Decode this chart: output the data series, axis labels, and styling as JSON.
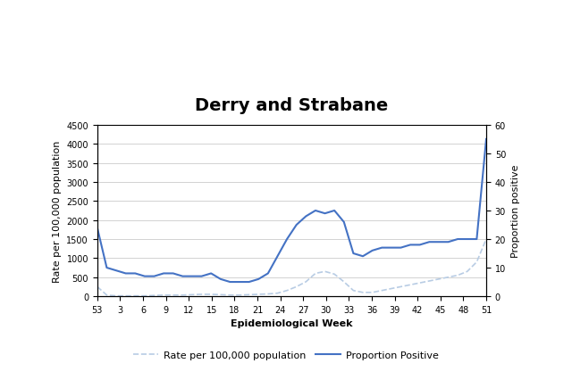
{
  "title": "Derry and Strabane",
  "xlabel": "Epidemiological Week",
  "ylabel_left": "Rate per 100,000 population",
  "ylabel_right": "Proportion positive",
  "xtick_labels": [
    "53",
    "3",
    "6",
    "9",
    "12",
    "15",
    "18",
    "21",
    "24",
    "27",
    "30",
    "33",
    "36",
    "39",
    "42",
    "45",
    "48",
    "51"
  ],
  "ylim_left": [
    0,
    4500
  ],
  "ylim_right": [
    0,
    60
  ],
  "yticks_left": [
    0,
    500,
    1000,
    1500,
    2000,
    2500,
    3000,
    3500,
    4000,
    4500
  ],
  "yticks_right": [
    0,
    10,
    20,
    30,
    40,
    50,
    60
  ],
  "proportion_positive": [
    24,
    10,
    9,
    8,
    8,
    7,
    7,
    8,
    8,
    7,
    7,
    7,
    8,
    6,
    5,
    5,
    5,
    6,
    8,
    14,
    20,
    25,
    28,
    30,
    29,
    30,
    26,
    15,
    14,
    16,
    17,
    17,
    17,
    18,
    18,
    19,
    19,
    19,
    20,
    20,
    20,
    55
  ],
  "rate_per_100k": [
    250,
    30,
    10,
    10,
    10,
    10,
    20,
    30,
    30,
    30,
    40,
    50,
    50,
    40,
    30,
    30,
    40,
    50,
    60,
    80,
    150,
    250,
    380,
    600,
    650,
    580,
    380,
    150,
    100,
    100,
    150,
    200,
    250,
    300,
    350,
    400,
    450,
    500,
    550,
    650,
    900,
    1500
  ],
  "proportion_color": "#4472c4",
  "rate_color": "#b8cce4",
  "background_color": "#ffffff",
  "title_fontsize": 14,
  "axis_label_fontsize": 8,
  "tick_fontsize": 7,
  "legend_fontsize": 8
}
